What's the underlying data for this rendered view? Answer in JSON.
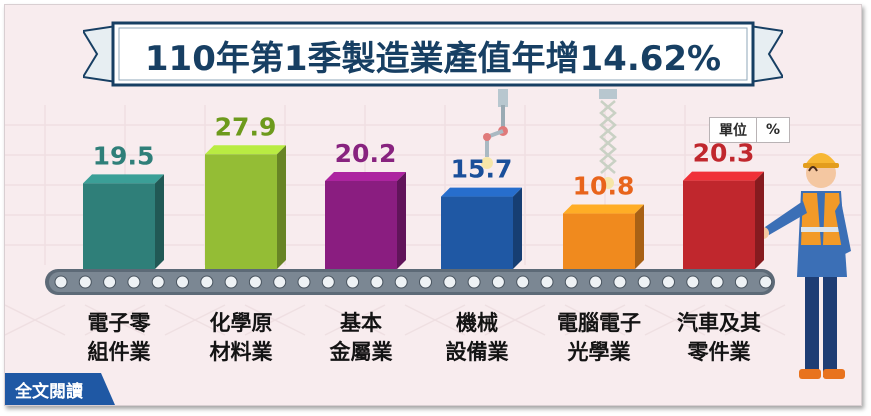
{
  "title": "110年第1季製造業產值年增14.62%",
  "unit": {
    "label": "單位",
    "value": "%"
  },
  "read_more": "全文閱讀",
  "colors": {
    "title": "#173f63",
    "background": "#f8ecee",
    "value_text": [
      "#2f7f79",
      "#6d9a1c",
      "#88237f",
      "#1a4f9a",
      "#e8641b",
      "#c0272d"
    ]
  },
  "chart_data": {
    "type": "bar",
    "title": "110年第1季製造業產值年增14.62%",
    "unit": "%",
    "categories": [
      [
        "電子零",
        "組件業"
      ],
      [
        "化學原",
        "材料業"
      ],
      [
        "基本",
        "金屬業"
      ],
      [
        "機械",
        "設備業"
      ],
      [
        "電腦電子",
        "光學業"
      ],
      [
        "汽車及其",
        "零件業"
      ]
    ],
    "values": [
      19.5,
      27.9,
      20.2,
      15.7,
      10.8,
      20.3
    ],
    "value_labels": [
      "19.5",
      "27.9",
      "20.2",
      "15.7",
      "10.8",
      "20.3"
    ],
    "bar_colors": [
      "#2f7f79",
      "#94bd35",
      "#8a1d80",
      "#1f58a4",
      "#f08a1e",
      "#c0272d"
    ],
    "ylim": [
      0,
      30
    ],
    "grid": false,
    "legend": "none"
  }
}
